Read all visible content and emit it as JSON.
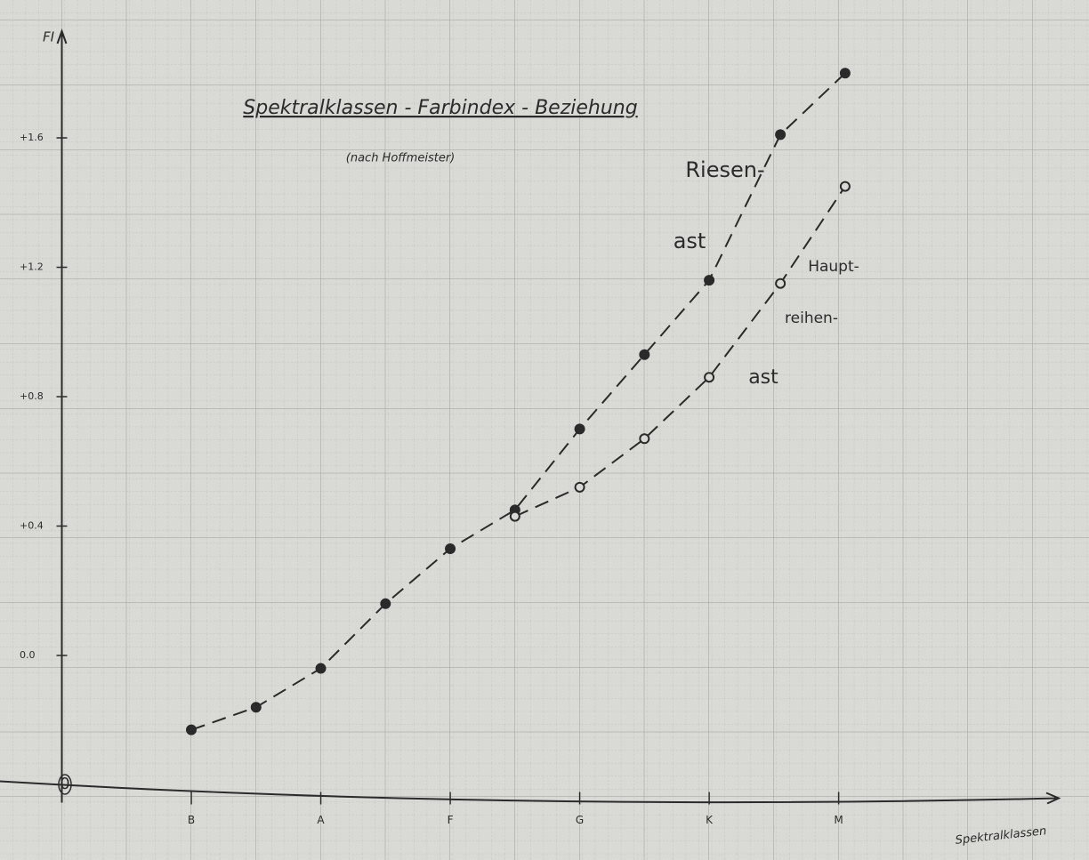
{
  "chart_data": {
    "type": "scatter",
    "title": "Spektralklassen - Farbindex - Beziehung",
    "subtitle": "(nach Hoffmeister)",
    "x_label": "Spektralklassen",
    "y_label": "FI",
    "origin_label": "0",
    "xlim": [
      -1,
      6.7
    ],
    "xticks": [
      {
        "value": 0,
        "label": "B"
      },
      {
        "value": 1,
        "label": "A"
      },
      {
        "value": 2,
        "label": "F"
      },
      {
        "value": 3,
        "label": "G"
      },
      {
        "value": 4,
        "label": "K"
      },
      {
        "value": 5,
        "label": "M"
      }
    ],
    "ylim": [
      -0.4,
      1.93
    ],
    "yticks": [
      {
        "value": 0,
        "label": "0.0"
      },
      {
        "value": 0.4,
        "label": "+0.4"
      },
      {
        "value": 0.8,
        "label": "+0.8"
      },
      {
        "value": 1.2,
        "label": "+1.2"
      },
      {
        "value": 1.6,
        "label": "+1.6"
      }
    ],
    "series": [
      {
        "color": "#2a2a2a",
        "marker": "filled",
        "x": [
          0,
          0.5,
          1,
          1.5,
          2,
          2.5,
          3,
          3.5,
          4,
          4.55,
          5.05
        ],
        "values": [
          -0.23,
          -0.16,
          -0.04,
          0.16,
          0.33,
          0.45,
          0.7,
          0.93,
          1.16,
          1.61,
          1.8
        ]
      },
      {
        "color": "#2a2a2a",
        "marker": "open",
        "x": [
          2.5,
          3,
          3.5,
          4,
          4.55,
          5.05
        ],
        "values": [
          0.43,
          0.52,
          0.67,
          0.86,
          1.15,
          1.45
        ]
      }
    ],
    "annotations": [
      "Riesen-",
      "ast",
      "Haupt-",
      "reihen-",
      "ast"
    ]
  }
}
